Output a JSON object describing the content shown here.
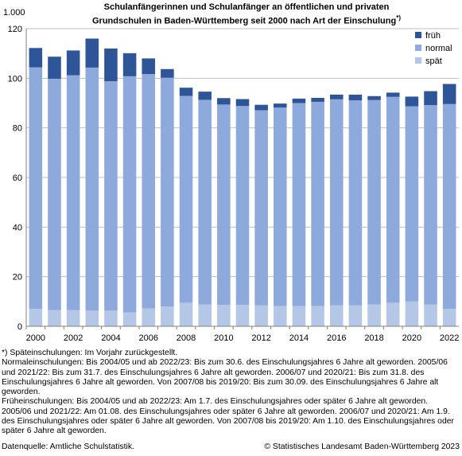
{
  "unit_label": "1.000",
  "title_line1": "Schulanfängerinnen und Schulanfänger an öffentlichen und privaten",
  "title_line2": "Grundschulen in Baden-Württemberg seit 2000 nach Art der Einschulung",
  "title_footnote_mark": "*)",
  "colors": {
    "frueh": "#2e5597",
    "normal": "#8ea9dc",
    "spaet": "#b4c7e7",
    "grid": "#bfbfbf",
    "axis": "#808080"
  },
  "chart_data": {
    "type": "bar",
    "stacked": true,
    "categories": [
      "2000",
      "2001",
      "2002",
      "2003",
      "2004",
      "2005",
      "2006",
      "2007",
      "2008",
      "2009",
      "2010",
      "2011",
      "2012",
      "2013",
      "2014",
      "2015",
      "2016",
      "2017",
      "2018",
      "2019",
      "2020",
      "2021",
      "2022"
    ],
    "x_tick_labels": [
      "2000",
      "2002",
      "2004",
      "2006",
      "2008",
      "2010",
      "2012",
      "2014",
      "2016",
      "2018",
      "2020",
      "2022"
    ],
    "series": [
      {
        "name": "spät",
        "color_key": "spaet",
        "values": [
          7.0,
          6.5,
          6.5,
          6.3,
          6.3,
          5.6,
          7.2,
          8.0,
          9.5,
          8.8,
          8.6,
          8.6,
          8.4,
          8.2,
          8.2,
          8.2,
          8.4,
          8.4,
          8.8,
          9.5,
          10.0,
          8.8,
          7.0
        ]
      },
      {
        "name": "normal",
        "color_key": "normal",
        "values": [
          97.4,
          93.3,
          94.7,
          98.0,
          92.5,
          95.2,
          94.5,
          92.2,
          83.4,
          82.5,
          80.8,
          80.2,
          78.7,
          80.0,
          81.8,
          82.3,
          83.1,
          82.7,
          82.4,
          83.0,
          78.7,
          80.4,
          82.6
        ]
      },
      {
        "name": "früh",
        "color_key": "frueh",
        "values": [
          7.8,
          8.9,
          10.0,
          11.7,
          13.2,
          9.3,
          6.3,
          3.5,
          3.3,
          3.3,
          2.6,
          2.8,
          2.2,
          1.6,
          1.8,
          1.6,
          1.9,
          2.3,
          1.6,
          1.7,
          3.9,
          5.6,
          8.1
        ]
      }
    ],
    "legend_order": [
      "früh",
      "normal",
      "spät"
    ],
    "legend_position": "top-right",
    "ylim": [
      0,
      120
    ],
    "y_ticks": [
      0,
      20,
      40,
      60,
      80,
      100,
      120
    ],
    "grid": true
  },
  "footnotes": [
    "*) Späteinschulungen: Im Vorjahr zurückgestellt.",
    "Normaleinschulungen: Bis 2004/05 und ab 2022/23: Bis zum 30.6. des Einschulungsjahres 6 Jahre alt geworden. 2005/06 und 2021/22: Bis zum 31.7. des Einschulungsjahres 6 Jahre alt geworden. 2006/07 und 2020/21: Bis zum 31.8. des Einschulungsjahres 6 Jahre alt geworden. Von 2007/08 bis 2019/20: Bis zum 30.09. des Einschulungsjahres 6 Jahre alt geworden.",
    "Früheinschulungen: Bis 2004/05 und ab 2022/23: Am 1.7. des Einschulungsjahres oder später 6 Jahre alt geworden. 2005/06 und 2021/22: Am 01.08. des Einschulungsjahres oder später 6 Jahre alt geworden. 2006/07 und 2020/21: Am 1.9. des Einschulungsjahres oder später 6 Jahre alt geworden. Von 2007/08 bis 2019/20: Am 1.10. des Einschulungsjahres oder später 6 Jahre alt geworden."
  ],
  "source": "Datenquelle: Amtliche Schulstatistik.",
  "copyright": "© Statistisches Landesamt Baden-Württemberg 2023"
}
